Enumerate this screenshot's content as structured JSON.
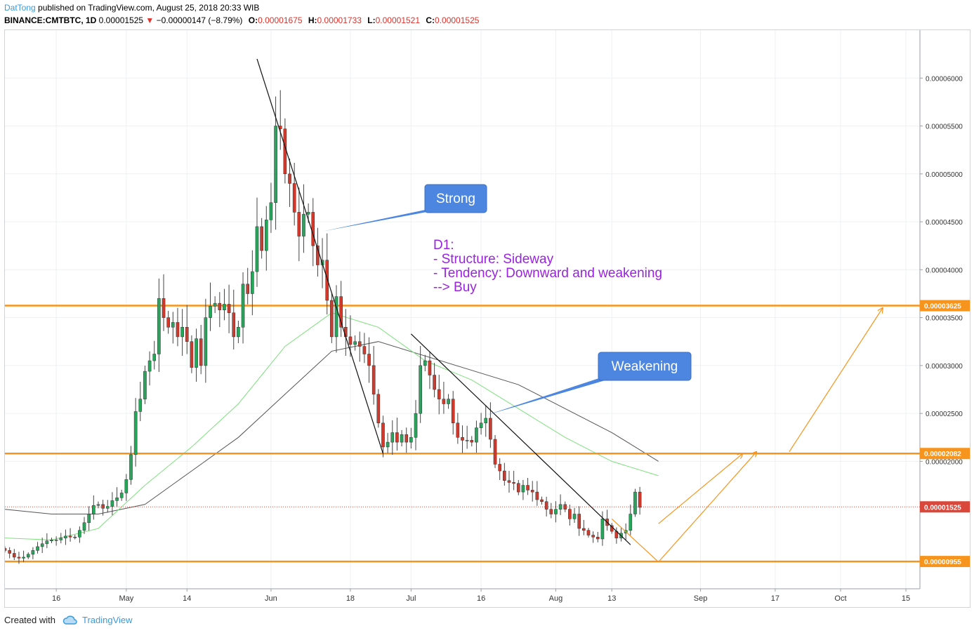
{
  "header": {
    "author": "DatTong",
    "published": " published on TradingView.com, August 25, 2018 20:33 WIB",
    "symbol": "BINANCE:CMTBTC, 1D",
    "last": "0.00001525",
    "change_arrow": "▼",
    "change": "−0.00000147 (−8.79%)",
    "o_label": "O:",
    "o": "0.00001675",
    "h_label": "H:",
    "h": "0.00001733",
    "l_label": "L:",
    "l": "0.00001521",
    "c_label": "C:",
    "c": "0.00001525"
  },
  "footer": {
    "created": "Created with",
    "brand": "TradingView",
    "logo_icon": "tradingview-cloud-icon"
  },
  "colors": {
    "up": "#26a65b",
    "down": "#d0392c",
    "sr_line": "#f7941d",
    "ma_fast": "#7ee07e",
    "ma_slow": "#555555",
    "callout": "#4c86e0",
    "analysis_text": "#9b22e0",
    "price_tag": "#f7941d",
    "last_tag": "#d9483b"
  },
  "chart_data": {
    "type": "candlestick",
    "symbol": "BINANCE:CMTBTC",
    "timeframe": "1D",
    "y_range": [
      6.7e-06,
      6.5e-05
    ],
    "y_ticks": [
      "0.00006000",
      "0.00005500",
      "0.00005000",
      "0.00004500",
      "0.00004000",
      "0.00003500",
      "0.00003000",
      "0.00002500",
      "0.00002000"
    ],
    "y_tick_values": [
      6e-05,
      5.5e-05,
      5e-05,
      4.5e-05,
      4e-05,
      3.5e-05,
      3e-05,
      2.5e-05,
      2e-05
    ],
    "x_range": [
      "2018-04-05",
      "2018-10-18"
    ],
    "x_ticks": [
      "16",
      "May",
      "14",
      "Jun",
      "18",
      "Jul",
      "16",
      "Aug",
      "13",
      "Sep",
      "17",
      "Oct",
      "15"
    ],
    "x_tick_dates": [
      "2018-04-16",
      "2018-05-01",
      "2018-05-14",
      "2018-06-01",
      "2018-06-18",
      "2018-07-01",
      "2018-07-16",
      "2018-08-01",
      "2018-08-13",
      "2018-09-01",
      "2018-09-17",
      "2018-10-01",
      "2018-10-15"
    ],
    "key_levels": [
      {
        "price": 3.625e-05,
        "label": "0.00003625"
      },
      {
        "price": 2.082e-05,
        "label": "0.00002082"
      },
      {
        "price": 9.55e-06,
        "label": "0.00000955"
      }
    ],
    "last_price": {
      "price": 1.525e-05,
      "label": "0.00001525"
    },
    "close_series": {
      "start": "2018-04-05",
      "values": [
        1.07e-05,
        1.04e-05,
        1e-05,
        9.9e-06,
        1e-05,
        1.03e-05,
        1.07e-05,
        1.11e-05,
        1.14e-05,
        1.17e-05,
        1.18e-05,
        1.18e-05,
        1.2e-05,
        1.22e-05,
        1.21e-05,
        1.21e-05,
        1.28e-05,
        1.36e-05,
        1.45e-05,
        1.54e-05,
        1.55e-05,
        1.51e-05,
        1.53e-05,
        1.59e-05,
        1.62e-05,
        1.67e-05,
        1.81e-05,
        2.07e-05,
        2.52e-05,
        2.65e-05,
        2.94e-05,
        3.05e-05,
        3.12e-05,
        3.7e-05,
        3.5e-05,
        3.4e-05,
        3.45e-05,
        3.3e-05,
        3.4e-05,
        3.25e-05,
        2.98e-05,
        3.28e-05,
        3e-05,
        3.5e-05,
        3.62e-05,
        3.65e-05,
        3.58e-05,
        3.64e-05,
        3.55e-05,
        3.3e-05,
        3.4e-05,
        3.85e-05,
        3.75e-05,
        3.98e-05,
        4.45e-05,
        4.2e-05,
        4.52e-05,
        4.7e-05,
        5.5e-05,
        5.47e-05,
        5e-05,
        4.9e-05,
        4.6e-05,
        4.35e-05,
        4.58e-05,
        4.6e-05,
        4.25e-05,
        4.05e-05,
        4.1e-05,
        3.68e-05,
        3.3e-05,
        3.72e-05,
        3.4e-05,
        3.3e-05,
        3.22e-05,
        3.25e-05,
        3.2e-05,
        3.12e-05,
        3e-05,
        2.7e-05,
        2.4e-05,
        2.15e-05,
        2.2e-05,
        2.3e-05,
        2.2e-05,
        2.28e-05,
        2.2e-05,
        2.25e-05,
        2.5e-05,
        3e-05,
        3.05e-05,
        2.9e-05,
        2.75e-05,
        2.65e-05,
        2.6e-05,
        2.65e-05,
        2.4e-05,
        2.25e-05,
        2.22e-05,
        2.22e-05,
        2.2e-05,
        2.35e-05,
        2.4e-05,
        2.45e-05,
        2.23e-05,
        1.97e-05,
        1.9e-05,
        1.8e-05,
        1.78e-05,
        1.77e-05,
        1.68e-05,
        1.75e-05,
        1.7e-05,
        1.68e-05,
        1.6e-05,
        1.58e-05,
        1.5e-05,
        1.45e-05,
        1.5e-05,
        1.55e-05,
        1.5e-05,
        1.4e-05,
        1.45e-05,
        1.3e-05,
        1.28e-05,
        1.23e-05,
        1.21e-05,
        1.19e-05,
        1.4e-05,
        1.33e-05,
        1.27e-05,
        1.2e-05,
        1.25e-05,
        1.28e-05,
        1.45e-05,
        1.68e-05,
        1.52e-05
      ]
    },
    "ma_fast": [
      [
        "2018-04-05",
        1.2e-05
      ],
      [
        "2018-04-15",
        1.18e-05
      ],
      [
        "2018-04-25",
        1.3e-05
      ],
      [
        "2018-05-05",
        1.75e-05
      ],
      [
        "2018-05-15",
        2.15e-05
      ],
      [
        "2018-05-25",
        2.6e-05
      ],
      [
        "2018-06-04",
        3.2e-05
      ],
      [
        "2018-06-14",
        3.55e-05
      ],
      [
        "2018-06-24",
        3.4e-05
      ],
      [
        "2018-07-04",
        3.05e-05
      ],
      [
        "2018-07-14",
        2.85e-05
      ],
      [
        "2018-07-24",
        2.55e-05
      ],
      [
        "2018-08-03",
        2.25e-05
      ],
      [
        "2018-08-13",
        2e-05
      ],
      [
        "2018-08-23",
        1.85e-05
      ]
    ],
    "ma_slow": [
      [
        "2018-04-05",
        1.5e-05
      ],
      [
        "2018-04-15",
        1.45e-05
      ],
      [
        "2018-04-25",
        1.45e-05
      ],
      [
        "2018-05-05",
        1.55e-05
      ],
      [
        "2018-05-15",
        1.9e-05
      ],
      [
        "2018-05-25",
        2.25e-05
      ],
      [
        "2018-06-04",
        2.7e-05
      ],
      [
        "2018-06-14",
        3.15e-05
      ],
      [
        "2018-06-24",
        3.25e-05
      ],
      [
        "2018-07-04",
        3.1e-05
      ],
      [
        "2018-07-14",
        2.95e-05
      ],
      [
        "2018-07-24",
        2.8e-05
      ],
      [
        "2018-08-03",
        2.55e-05
      ],
      [
        "2018-08-13",
        2.3e-05
      ],
      [
        "2018-08-23",
        2e-05
      ]
    ],
    "annotations": {
      "callouts": [
        {
          "text": "Strong",
          "tip_date": "2018-06-12",
          "tip_price": 4.4e-05
        },
        {
          "text": "Weakening",
          "tip_date": "2018-07-17",
          "tip_price": 2.48e-05
        }
      ],
      "analysis_text": [
        "D1:",
        "- Structure: Sideway",
        "- Tendency: Downward and weakening",
        "--> Buy"
      ],
      "trendlines": [
        [
          [
            "2018-05-29",
            6.2e-05
          ],
          [
            "2018-06-25",
            2.08e-05
          ]
        ],
        [
          [
            "2018-07-01",
            3.33e-05
          ],
          [
            "2018-08-17",
            1.13e-05
          ]
        ]
      ],
      "projection_paths": [
        [
          [
            "2018-08-13",
            1.4e-05
          ],
          [
            "2018-08-23",
            9.5e-06
          ],
          [
            "2018-09-13",
            2.1e-05
          ]
        ],
        [
          [
            "2018-08-23",
            1.35e-05
          ],
          [
            "2018-09-10",
            2.08e-05
          ]
        ],
        [
          [
            "2018-09-20",
            2.1e-05
          ],
          [
            "2018-10-10",
            3.6e-05
          ]
        ]
      ]
    }
  }
}
